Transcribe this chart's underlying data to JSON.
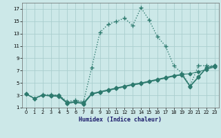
{
  "title": "",
  "xlabel": "Humidex (Indice chaleur)",
  "bg_color": "#cce8e8",
  "grid_color": "#aacece",
  "line_color": "#2d7a6e",
  "xlim": [
    -0.5,
    23.5
  ],
  "ylim": [
    1,
    18
  ],
  "xticks": [
    0,
    1,
    2,
    3,
    4,
    5,
    6,
    7,
    8,
    9,
    10,
    11,
    12,
    13,
    14,
    15,
    16,
    17,
    18,
    19,
    20,
    21,
    22,
    23
  ],
  "yticks": [
    1,
    3,
    5,
    7,
    9,
    11,
    13,
    15,
    17
  ],
  "series": [
    {
      "x": [
        0,
        1,
        2,
        3,
        4,
        5,
        6,
        7,
        8,
        9,
        10,
        11,
        12,
        13,
        14,
        15,
        16,
        17,
        18,
        19,
        20,
        21,
        22,
        23
      ],
      "y": [
        3.2,
        2.5,
        3.1,
        3.1,
        3.0,
        2.0,
        2.2,
        2.0,
        7.5,
        13.2,
        14.5,
        15.0,
        15.5,
        14.3,
        17.2,
        15.2,
        12.5,
        11.0,
        7.8,
        6.6,
        4.5,
        7.8,
        7.8,
        7.8
      ],
      "style": ":",
      "marker": "+",
      "linewidth": 1.0,
      "markersize": 5
    },
    {
      "x": [
        0,
        1,
        2,
        3,
        4,
        5,
        6,
        7,
        8,
        9,
        10,
        11,
        12,
        13,
        14,
        15,
        16,
        17,
        18,
        19,
        20,
        21,
        22,
        23
      ],
      "y": [
        3.2,
        2.5,
        3.0,
        3.0,
        3.0,
        1.8,
        2.0,
        1.8,
        3.3,
        3.6,
        3.9,
        4.2,
        4.5,
        4.8,
        5.0,
        5.3,
        5.6,
        5.9,
        6.2,
        6.4,
        4.5,
        6.0,
        7.5,
        7.8
      ],
      "style": "-",
      "marker": "D",
      "linewidth": 0.8,
      "markersize": 2.5
    },
    {
      "x": [
        0,
        1,
        2,
        3,
        4,
        5,
        6,
        7,
        8,
        9,
        10,
        11,
        12,
        13,
        14,
        15,
        16,
        17,
        18,
        19,
        20,
        21,
        22,
        23
      ],
      "y": [
        3.2,
        2.5,
        3.0,
        2.9,
        2.9,
        1.7,
        1.9,
        1.6,
        3.2,
        3.5,
        3.8,
        4.1,
        4.4,
        4.7,
        4.9,
        5.2,
        5.5,
        5.8,
        6.1,
        6.3,
        4.4,
        5.9,
        7.4,
        7.7
      ],
      "style": "-",
      "marker": "D",
      "linewidth": 0.8,
      "markersize": 2.5
    },
    {
      "x": [
        0,
        1,
        2,
        3,
        4,
        5,
        6,
        7,
        8,
        9,
        10,
        11,
        12,
        13,
        14,
        15,
        16,
        17,
        18,
        19,
        20,
        21,
        22,
        23
      ],
      "y": [
        3.2,
        2.5,
        3.0,
        2.9,
        2.8,
        1.7,
        1.9,
        1.6,
        3.2,
        3.5,
        3.8,
        4.1,
        4.4,
        4.7,
        4.9,
        5.2,
        5.5,
        5.8,
        6.1,
        6.4,
        6.5,
        6.8,
        7.2,
        7.6
      ],
      "style": "-",
      "marker": "D",
      "linewidth": 0.8,
      "markersize": 2.5
    }
  ]
}
